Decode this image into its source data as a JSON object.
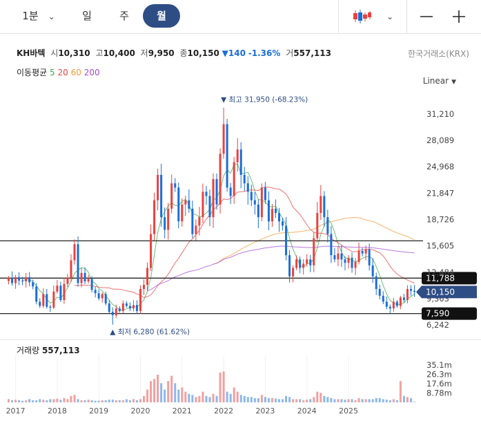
{
  "toolbar": {
    "periods": [
      {
        "label": "1분",
        "has_dropdown": true
      },
      {
        "label": "일"
      },
      {
        "label": "주"
      },
      {
        "label": "월",
        "active": true
      }
    ],
    "chart_type_icon": "candlestick-icon",
    "zoom_out_icon": "minus-icon",
    "zoom_in_icon": "plus-icon"
  },
  "stock": {
    "name": "KH바텍",
    "open_label": "시",
    "open": "10,310",
    "high_label": "고",
    "high": "10,400",
    "low_label": "저",
    "low": "9,950",
    "close_label": "종",
    "close": "10,150",
    "change": "140",
    "change_pct": "-1.36%",
    "volume_label": "거",
    "volume": "557,113",
    "exchange": "한국거래소(KRX)"
  },
  "ma_legend": {
    "label": "이동평균",
    "periods": [
      {
        "value": "5",
        "color": "#3aa845"
      },
      {
        "value": "20",
        "color": "#e8423f"
      },
      {
        "value": "60",
        "color": "#f29a38"
      },
      {
        "value": "200",
        "color": "#a24ad6"
      }
    ]
  },
  "scale_mode": "Linear",
  "volume_panel": {
    "label": "거래량",
    "value": "557,113"
  },
  "chart_data": {
    "type": "candlestick",
    "interval": "monthly",
    "price_axis_ticks": [
      "31,210",
      "28,089",
      "24,968",
      "21,847",
      "18,726",
      "15,605",
      "12,484",
      "9,363",
      "6,242"
    ],
    "tick_values": [
      31210,
      28089,
      24968,
      21847,
      18726,
      15605,
      12484,
      9363,
      6242
    ],
    "ylim": [
      5600,
      33400
    ],
    "x_axis_ticks": [
      "2017",
      "2018",
      "2019",
      "2020",
      "2021",
      "2022",
      "2023",
      "2024",
      "2025"
    ],
    "annotations": {
      "high": {
        "label": "최고",
        "value": "31,950",
        "pct": "(-68.23%)"
      },
      "low": {
        "label": "최저",
        "value": "6,280",
        "pct": "(61.62%)"
      }
    },
    "horizontal_lines": [
      {
        "value": 16200
      },
      {
        "value": 11788,
        "label": "11,788"
      },
      {
        "value": 7590,
        "label": "7,590"
      }
    ],
    "current_price": {
      "value": 10150,
      "label": "10,150"
    },
    "up_color": "#e8423f",
    "down_color": "#1a6ed8",
    "volume_axis_ticks": [
      "35.1m",
      "26.3m",
      "17.6m",
      "8.78m"
    ],
    "volume_tick_values": [
      35.1,
      26.3,
      17.6,
      8.78
    ],
    "volume_max": 39,
    "closes": [
      11800,
      11200,
      11900,
      11500,
      11400,
      11900,
      11300,
      10800,
      9000,
      8500,
      9900,
      8400,
      8300,
      10200,
      10900,
      9200,
      11100,
      11800,
      13900,
      15800,
      11200,
      12400,
      11400,
      11700,
      10400,
      10000,
      9400,
      9900,
      8800,
      7800,
      7400,
      8200,
      7900,
      8800,
      8500,
      8200,
      8600,
      7900,
      10500,
      11000,
      13000,
      17000,
      21000,
      24000,
      19000,
      17500,
      20000,
      23000,
      22500,
      18500,
      20500,
      21000,
      20000,
      17000,
      18000,
      19000,
      22000,
      21500,
      19000,
      23500,
      20500,
      26500,
      30000,
      22500,
      21500,
      25500,
      27000,
      24000,
      23000,
      22000,
      21000,
      20500,
      19000,
      22500,
      21000,
      18500,
      20000,
      19500,
      18500,
      18000,
      14500,
      12000,
      13000,
      14000,
      13000,
      13500,
      14000,
      13300,
      16500,
      19500,
      21500,
      19000,
      17000,
      14500,
      14000,
      14700,
      14000,
      13600,
      14200,
      13000,
      13700,
      15000,
      14700,
      15200,
      13300,
      12000,
      10500,
      9700,
      9000,
      8400,
      8200,
      9000,
      8500,
      9500,
      9200,
      10500,
      10290,
      10150
    ],
    "volumes_millions": [
      3,
      2,
      2.5,
      2,
      1.5,
      2,
      3,
      2,
      2,
      3,
      2.5,
      2,
      3,
      3,
      3.5,
      2.5,
      4,
      3,
      6,
      7,
      3,
      2,
      2,
      2.5,
      2,
      1.5,
      1.5,
      2,
      2,
      2.5,
      2.5,
      2,
      2,
      2,
      3,
      2,
      3,
      2,
      3,
      6,
      12,
      20,
      22,
      26,
      18,
      12,
      20,
      25,
      18,
      12,
      14,
      10,
      8,
      7,
      5,
      6,
      10,
      6,
      5,
      8,
      6,
      28,
      29,
      10,
      8,
      14,
      10,
      7,
      6,
      5,
      5,
      4,
      4,
      7,
      5,
      4,
      4,
      3.5,
      3,
      3,
      6,
      5,
      3,
      3,
      3,
      2,
      2.5,
      3,
      5,
      10,
      9,
      6,
      5,
      4,
      3,
      3,
      3,
      2.5,
      3,
      3,
      2,
      4,
      3,
      3,
      3,
      3,
      4,
      4,
      3,
      2.5,
      2,
      3,
      2,
      20,
      6,
      5,
      4,
      0.56
    ]
  }
}
